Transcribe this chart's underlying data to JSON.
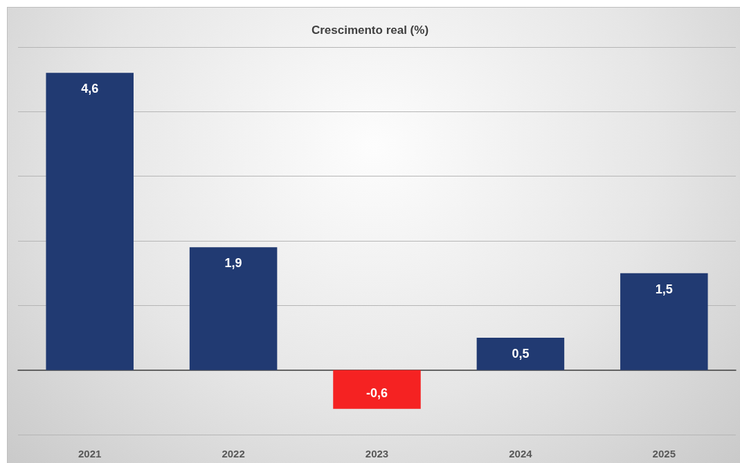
{
  "chart_data": {
    "type": "bar",
    "title": "Crescimento real (%)",
    "categories": [
      "2021",
      "2022",
      "2023",
      "2024",
      "2025"
    ],
    "values": [
      4.6,
      1.9,
      -0.6,
      0.5,
      1.5
    ],
    "colors": [
      "#213a72",
      "#213a72",
      "#f52222",
      "#213a72",
      "#213a72"
    ],
    "value_labels": [
      "4,6",
      "1,9",
      "-0,6",
      "0,5",
      "1,5"
    ],
    "ylim": [
      -1,
      5
    ],
    "yticks": [
      {
        "value": -1,
        "label": null
      },
      {
        "value": 0,
        "label": null
      },
      {
        "value": 1,
        "label": null
      },
      {
        "value": 2,
        "label": null
      },
      {
        "value": 3,
        "label": null
      },
      {
        "value": 4,
        "label": null
      },
      {
        "value": 5,
        "label": null
      }
    ],
    "grid": "y",
    "tick_labels": "x"
  }
}
